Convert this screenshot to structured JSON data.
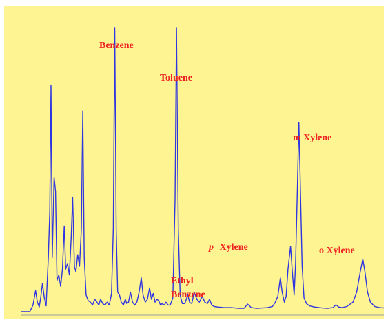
{
  "chart_data": {
    "type": "line",
    "title": "",
    "xlabel": "",
    "ylabel": "",
    "xlim": [
      0,
      100
    ],
    "ylim": [
      0,
      100
    ],
    "grid": false,
    "colors": {
      "page_background": "#ffffff",
      "plot_background": "#fef491",
      "trace": "#2f35e0",
      "labels": "#ee2222",
      "axis": "#b9b9a0"
    },
    "series": [
      {
        "values": [
          [
            0,
            1.2
          ],
          [
            2.5,
            1.2
          ],
          [
            3.4,
            3.5
          ],
          [
            4.1,
            8.5
          ],
          [
            4.6,
            4.5
          ],
          [
            5.1,
            2.8
          ],
          [
            5.5,
            6.0
          ],
          [
            6.0,
            11.0
          ],
          [
            6.5,
            6.0
          ],
          [
            7.0,
            3.2
          ],
          [
            7.6,
            20.0
          ],
          [
            8.0,
            36.0
          ],
          [
            8.35,
            80.0
          ],
          [
            8.7,
            20.0
          ],
          [
            9.2,
            48.0
          ],
          [
            9.6,
            43.0
          ],
          [
            10.0,
            12.0
          ],
          [
            10.5,
            14.0
          ],
          [
            11.0,
            10.0
          ],
          [
            11.5,
            16.0
          ],
          [
            12.0,
            31.0
          ],
          [
            12.4,
            16.0
          ],
          [
            12.9,
            18.0
          ],
          [
            13.4,
            14.0
          ],
          [
            13.9,
            27.0
          ],
          [
            14.3,
            41.0
          ],
          [
            14.8,
            17.0
          ],
          [
            15.2,
            15.0
          ],
          [
            15.7,
            21.0
          ],
          [
            16.2,
            17.0
          ],
          [
            16.7,
            30.0
          ],
          [
            17.1,
            71.0
          ],
          [
            17.5,
            20.0
          ],
          [
            18.0,
            7.0
          ],
          [
            18.6,
            5.0
          ],
          [
            19.2,
            4.5
          ],
          [
            19.8,
            3.5
          ],
          [
            20.4,
            5.5
          ],
          [
            21.0,
            4.5
          ],
          [
            21.5,
            3.5
          ],
          [
            22.0,
            5.5
          ],
          [
            22.6,
            4.0
          ],
          [
            23.2,
            3.5
          ],
          [
            23.8,
            4.5
          ],
          [
            24.4,
            3.5
          ],
          [
            25.0,
            7.5
          ],
          [
            25.5,
            30.0
          ],
          [
            25.9,
            100.0
          ],
          [
            26.3,
            30.0
          ],
          [
            26.7,
            8.0
          ],
          [
            27.2,
            7.0
          ],
          [
            27.7,
            4.5
          ],
          [
            28.3,
            3.5
          ],
          [
            28.8,
            5.5
          ],
          [
            29.2,
            4.0
          ],
          [
            29.7,
            4.5
          ],
          [
            30.2,
            8.0
          ],
          [
            30.8,
            4.5
          ],
          [
            31.4,
            3.5
          ],
          [
            32.0,
            4.5
          ],
          [
            32.6,
            8.0
          ],
          [
            33.2,
            13.0
          ],
          [
            33.7,
            7.0
          ],
          [
            34.3,
            4.5
          ],
          [
            34.9,
            5.5
          ],
          [
            35.5,
            9.5
          ],
          [
            36.0,
            5.5
          ],
          [
            36.5,
            7.5
          ],
          [
            37.0,
            4.5
          ],
          [
            37.5,
            5.5
          ],
          [
            38.0,
            5.0
          ],
          [
            38.5,
            3.5
          ],
          [
            39.0,
            4.0
          ],
          [
            39.6,
            3.5
          ],
          [
            40.0,
            4.5
          ],
          [
            40.6,
            3.5
          ],
          [
            41.2,
            3.5
          ],
          [
            41.9,
            6.0
          ],
          [
            42.5,
            40.0
          ],
          [
            42.9,
            100.0
          ],
          [
            43.4,
            30.0
          ],
          [
            43.9,
            7.0
          ],
          [
            44.5,
            4.0
          ],
          [
            45.2,
            4.0
          ],
          [
            46.0,
            7.0
          ],
          [
            46.5,
            4.5
          ],
          [
            47.1,
            4.0
          ],
          [
            47.8,
            8.0
          ],
          [
            48.5,
            5.5
          ],
          [
            49.2,
            4.5
          ],
          [
            50.0,
            6.5
          ],
          [
            50.7,
            4.5
          ],
          [
            51.4,
            4.0
          ],
          [
            52.0,
            5.5
          ],
          [
            52.6,
            3.5
          ],
          [
            53.3,
            3.0
          ],
          [
            54.5,
            2.8
          ],
          [
            56.0,
            2.6
          ],
          [
            58.0,
            2.6
          ],
          [
            60.0,
            2.4
          ],
          [
            61.5,
            2.4
          ],
          [
            62.5,
            3.8
          ],
          [
            63.5,
            2.6
          ],
          [
            65.0,
            2.4
          ],
          [
            66.5,
            2.5
          ],
          [
            68.0,
            2.6
          ],
          [
            69.3,
            3.0
          ],
          [
            70.0,
            4.2
          ],
          [
            70.8,
            6.5
          ],
          [
            71.5,
            13.0
          ],
          [
            72.0,
            8.0
          ],
          [
            72.6,
            4.5
          ],
          [
            73.1,
            6.5
          ],
          [
            73.6,
            16.0
          ],
          [
            74.3,
            24.0
          ],
          [
            74.8,
            15.0
          ],
          [
            75.3,
            7.0
          ],
          [
            75.7,
            18.0
          ],
          [
            76.2,
            45.0
          ],
          [
            76.6,
            67.0
          ],
          [
            77.0,
            45.0
          ],
          [
            77.5,
            17.0
          ],
          [
            78.0,
            6.0
          ],
          [
            78.7,
            4.0
          ],
          [
            79.5,
            3.2
          ],
          [
            81.0,
            2.8
          ],
          [
            83.0,
            2.5
          ],
          [
            84.5,
            2.4
          ],
          [
            86.0,
            2.6
          ],
          [
            86.8,
            3.6
          ],
          [
            87.6,
            2.8
          ],
          [
            88.5,
            2.6
          ],
          [
            89.8,
            3.0
          ],
          [
            91.5,
            4.5
          ],
          [
            92.5,
            8.0
          ],
          [
            93.5,
            15.0
          ],
          [
            94.2,
            19.5
          ],
          [
            94.8,
            15.0
          ],
          [
            95.5,
            8.0
          ],
          [
            96.3,
            4.5
          ],
          [
            97.5,
            3.0
          ],
          [
            98.8,
            2.6
          ],
          [
            100,
            2.5
          ]
        ]
      }
    ],
    "annotations": [
      {
        "id": "benzene",
        "text": "Benzene",
        "x": 25.9,
        "y": 100.0
      },
      {
        "id": "toluene",
        "text": "Toluene",
        "x": 42.9,
        "y": 100.0
      },
      {
        "id": "ethyl-benzene",
        "lines": [
          "Ethyl",
          "Benzene"
        ],
        "x": 48.0,
        "y": 8.0
      },
      {
        "id": "p-xylene",
        "prefix": "p",
        "text": "Xylene",
        "x": 74.3,
        "y": 24.0
      },
      {
        "id": "m-xylene",
        "text": "m Xylene",
        "x": 76.6,
        "y": 67.0
      },
      {
        "id": "o-xylene",
        "text": "o Xylene",
        "x": 94.2,
        "y": 19.5
      }
    ]
  }
}
